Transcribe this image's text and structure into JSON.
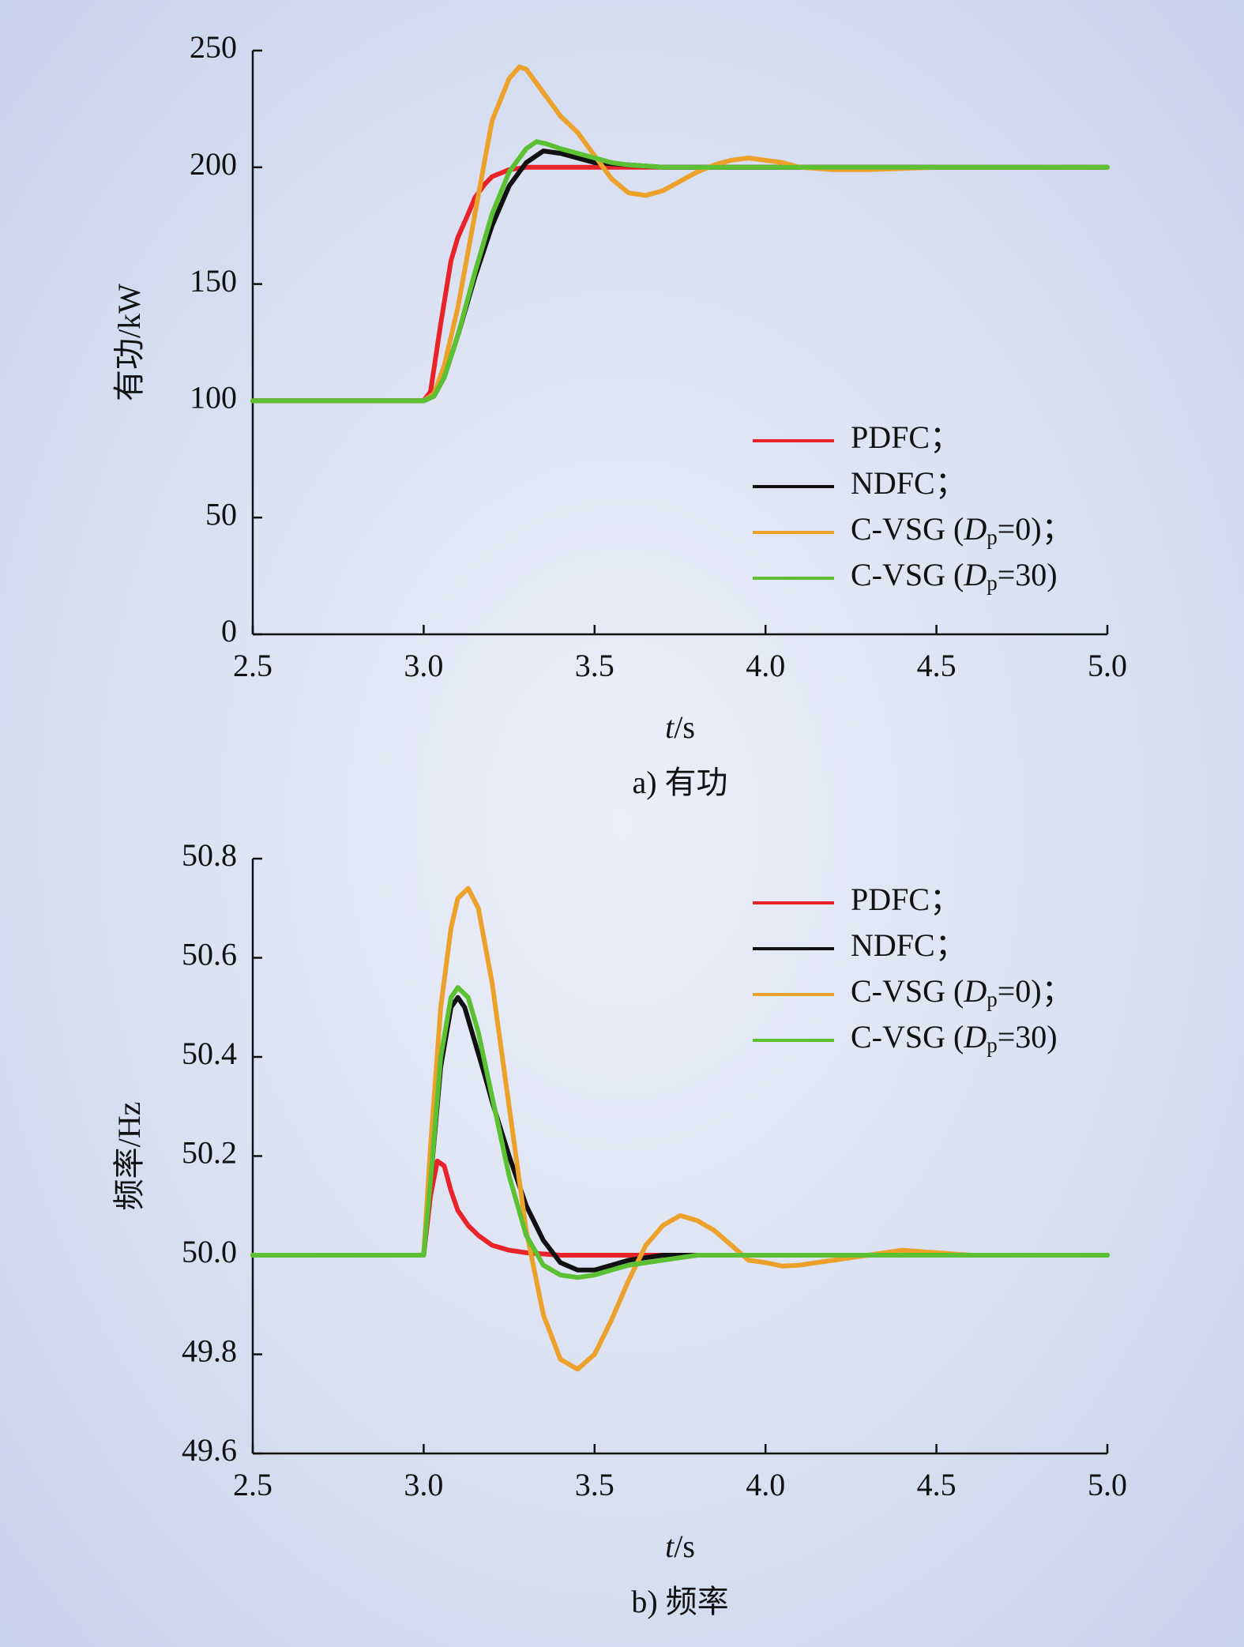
{
  "chart_data": [
    {
      "type": "line",
      "caption": "a) 有功",
      "xlabel": "t/s",
      "ylabel": "有功/kW",
      "xlim": [
        2.5,
        5.0
      ],
      "ylim": [
        0,
        250
      ],
      "xticks": [
        "2.5",
        "3.0",
        "3.5",
        "4.0",
        "4.5",
        "5.0"
      ],
      "yticks": [
        "0",
        "50",
        "100",
        "150",
        "200",
        "250"
      ],
      "grid": false,
      "legend_position": "lower-right",
      "legend": [
        {
          "label": "PDFC；",
          "color": "#e8232a"
        },
        {
          "label": "NDFC；",
          "color": "#111111"
        },
        {
          "label": "C-VSG (Dp=0)；",
          "color": "#eca12b"
        },
        {
          "label": "C-VSG (Dp=30)",
          "color": "#5cc132"
        }
      ],
      "series": [
        {
          "name": "PDFC",
          "color": "#e8232a",
          "x": [
            2.5,
            3.0,
            3.02,
            3.05,
            3.08,
            3.1,
            3.13,
            3.15,
            3.18,
            3.2,
            3.25,
            3.3,
            3.4,
            3.5,
            4.0,
            4.5,
            5.0
          ],
          "y": [
            100,
            100,
            104,
            133,
            160,
            170,
            180,
            187,
            193,
            196,
            199,
            200,
            200,
            200,
            200,
            200,
            200
          ]
        },
        {
          "name": "NDFC",
          "color": "#111111",
          "x": [
            2.5,
            3.0,
            3.03,
            3.06,
            3.1,
            3.15,
            3.2,
            3.25,
            3.3,
            3.35,
            3.4,
            3.45,
            3.5,
            3.6,
            3.7,
            4.0,
            4.5,
            5.0
          ],
          "y": [
            100,
            100,
            102,
            110,
            128,
            153,
            175,
            192,
            202,
            207,
            206,
            204,
            202,
            201,
            200,
            200,
            200,
            200
          ]
        },
        {
          "name": "C-VSG (Dp=0)",
          "color": "#eca12b",
          "x": [
            2.5,
            3.0,
            3.03,
            3.06,
            3.1,
            3.15,
            3.2,
            3.25,
            3.28,
            3.3,
            3.35,
            3.4,
            3.45,
            3.5,
            3.55,
            3.6,
            3.65,
            3.7,
            3.75,
            3.8,
            3.85,
            3.9,
            3.95,
            4.0,
            4.05,
            4.1,
            4.2,
            4.3,
            4.5,
            5.0
          ],
          "y": [
            100,
            100,
            103,
            115,
            140,
            180,
            220,
            238,
            243,
            242,
            232,
            222,
            215,
            205,
            195,
            189,
            188,
            190,
            194,
            198,
            201,
            203,
            204,
            203,
            202,
            200,
            199,
            199,
            200,
            200
          ]
        },
        {
          "name": "C-VSG (Dp=30)",
          "color": "#5cc132",
          "x": [
            2.5,
            3.0,
            3.03,
            3.06,
            3.1,
            3.15,
            3.2,
            3.25,
            3.3,
            3.33,
            3.36,
            3.4,
            3.45,
            3.5,
            3.55,
            3.6,
            3.7,
            3.8,
            4.0,
            4.5,
            5.0
          ],
          "y": [
            100,
            100,
            102,
            110,
            128,
            155,
            180,
            198,
            208,
            211,
            210,
            208,
            206,
            204,
            202,
            201,
            200,
            200,
            200,
            200,
            200
          ]
        }
      ]
    },
    {
      "type": "line",
      "caption": "b) 频率",
      "xlabel": "t/s",
      "ylabel": "频率/Hz",
      "xlim": [
        2.5,
        5.0
      ],
      "ylim": [
        49.6,
        50.8
      ],
      "xticks": [
        "2.5",
        "3.0",
        "3.5",
        "4.0",
        "4.5",
        "5.0"
      ],
      "yticks": [
        "49.6",
        "49.8",
        "50.0",
        "50.2",
        "50.4",
        "50.6",
        "50.8"
      ],
      "grid": false,
      "legend_position": "upper-right",
      "legend": [
        {
          "label": "PDFC；",
          "color": "#e8232a"
        },
        {
          "label": "NDFC；",
          "color": "#111111"
        },
        {
          "label": "C-VSG (Dp=0)；",
          "color": "#eca12b"
        },
        {
          "label": "C-VSG (Dp=30)",
          "color": "#5cc132"
        }
      ],
      "series": [
        {
          "name": "PDFC",
          "color": "#e8232a",
          "x": [
            2.5,
            3.0,
            3.02,
            3.04,
            3.06,
            3.08,
            3.1,
            3.13,
            3.16,
            3.2,
            3.25,
            3.3,
            3.4,
            3.5,
            4.0,
            4.5,
            5.0
          ],
          "y": [
            50.0,
            50.0,
            50.12,
            50.19,
            50.18,
            50.13,
            50.09,
            50.06,
            50.04,
            50.02,
            50.01,
            50.005,
            50.0,
            50.0,
            50.0,
            50.0,
            50.0
          ]
        },
        {
          "name": "NDFC",
          "color": "#111111",
          "x": [
            2.5,
            3.0,
            3.02,
            3.05,
            3.08,
            3.1,
            3.12,
            3.15,
            3.18,
            3.2,
            3.25,
            3.3,
            3.35,
            3.4,
            3.45,
            3.5,
            3.55,
            3.6,
            3.7,
            3.8,
            4.0,
            4.5,
            5.0
          ],
          "y": [
            50.0,
            50.0,
            50.15,
            50.38,
            50.5,
            50.52,
            50.5,
            50.43,
            50.36,
            50.31,
            50.2,
            50.1,
            50.03,
            49.985,
            49.97,
            49.97,
            49.98,
            49.99,
            50.0,
            50.0,
            50.0,
            50.0,
            50.0
          ]
        },
        {
          "name": "C-VSG (Dp=0)",
          "color": "#eca12b",
          "x": [
            2.5,
            3.0,
            3.02,
            3.05,
            3.08,
            3.1,
            3.13,
            3.16,
            3.2,
            3.25,
            3.3,
            3.35,
            3.4,
            3.45,
            3.5,
            3.55,
            3.6,
            3.65,
            3.7,
            3.75,
            3.8,
            3.85,
            3.9,
            3.95,
            4.0,
            4.05,
            4.1,
            4.15,
            4.2,
            4.3,
            4.4,
            4.5,
            4.6,
            5.0
          ],
          "y": [
            50.0,
            50.0,
            50.22,
            50.5,
            50.66,
            50.72,
            50.74,
            50.7,
            50.55,
            50.3,
            50.05,
            49.88,
            49.79,
            49.77,
            49.8,
            49.87,
            49.95,
            50.02,
            50.06,
            50.08,
            50.07,
            50.05,
            50.02,
            49.99,
            49.985,
            49.978,
            49.98,
            49.985,
            49.99,
            50.0,
            50.01,
            50.005,
            50.0,
            50.0
          ]
        },
        {
          "name": "C-VSG (Dp=30)",
          "color": "#5cc132",
          "x": [
            2.5,
            3.0,
            3.02,
            3.05,
            3.08,
            3.1,
            3.13,
            3.16,
            3.2,
            3.25,
            3.3,
            3.35,
            3.4,
            3.45,
            3.5,
            3.55,
            3.6,
            3.7,
            3.8,
            4.0,
            4.5,
            5.0
          ],
          "y": [
            50.0,
            50.0,
            50.15,
            50.4,
            50.52,
            50.54,
            50.52,
            50.45,
            50.32,
            50.16,
            50.04,
            49.98,
            49.96,
            49.955,
            49.96,
            49.97,
            49.98,
            49.99,
            50.0,
            50.0,
            50.0,
            50.0
          ]
        }
      ]
    }
  ]
}
